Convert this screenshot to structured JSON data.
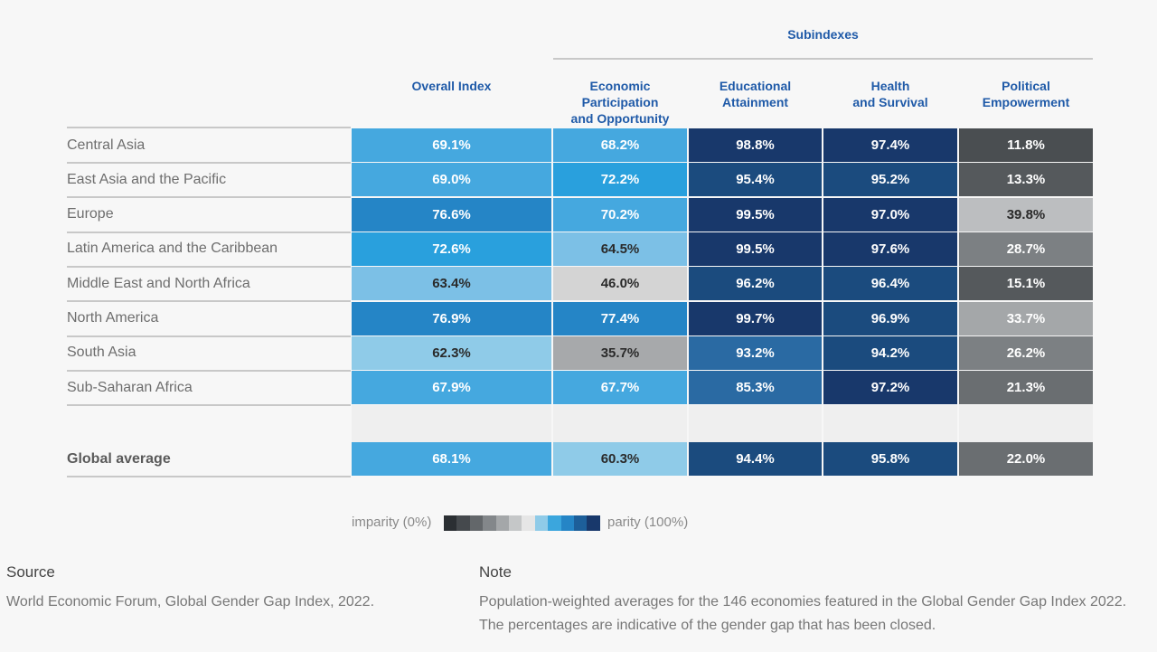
{
  "chart_data": {
    "type": "table",
    "group_header": "Subindexes",
    "columns": [
      "Overall Index",
      "Economic Participation\nand Opportunity",
      "Educational\nAttainment",
      "Health\nand Survival",
      "Political\nEmpowerment"
    ],
    "rows": [
      {
        "region": "Central Asia",
        "values": [
          "69.1%",
          "68.2%",
          "98.8%",
          "97.4%",
          "11.8%"
        ]
      },
      {
        "region": "East Asia and the Pacific",
        "values": [
          "69.0%",
          "72.2%",
          "95.4%",
          "95.2%",
          "13.3%"
        ]
      },
      {
        "region": "Europe",
        "values": [
          "76.6%",
          "70.2%",
          "99.5%",
          "97.0%",
          "39.8%"
        ]
      },
      {
        "region": "Latin America and the Caribbean",
        "values": [
          "72.6%",
          "64.5%",
          "99.5%",
          "97.6%",
          "28.7%"
        ]
      },
      {
        "region": "Middle East and North Africa",
        "values": [
          "63.4%",
          "46.0%",
          "96.2%",
          "96.4%",
          "15.1%"
        ]
      },
      {
        "region": "North America",
        "values": [
          "76.9%",
          "77.4%",
          "99.7%",
          "96.9%",
          "33.7%"
        ]
      },
      {
        "region": "South Asia",
        "values": [
          "62.3%",
          "35.7%",
          "93.2%",
          "94.2%",
          "26.2%"
        ]
      },
      {
        "region": "Sub-Saharan Africa",
        "values": [
          "67.9%",
          "67.7%",
          "85.3%",
          "97.2%",
          "21.3%"
        ]
      }
    ],
    "global": {
      "region": "Global average",
      "values": [
        "68.1%",
        "60.3%",
        "94.4%",
        "95.8%",
        "22.0%"
      ]
    },
    "legend": {
      "low_label": "imparity (0%)",
      "high_label": "parity (100%)",
      "colors": [
        "#2b2f33",
        "#45494d",
        "#63676a",
        "#83878a",
        "#a4a7a9",
        "#c5c7c8",
        "#e6e6e6",
        "#8fcbe8",
        "#3ba6dd",
        "#2585c6",
        "#1d5f9a",
        "#18386b"
      ]
    }
  },
  "footer": {
    "source_heading": "Source",
    "source_text": "World Economic Forum, Global Gender Gap Index, 2022.",
    "note_heading": "Note",
    "note_text": "Population-weighted averages for the 146 economies featured in the Global Gender Gap Index 2022. The percentages are indicative of the gender gap that has been closed."
  }
}
